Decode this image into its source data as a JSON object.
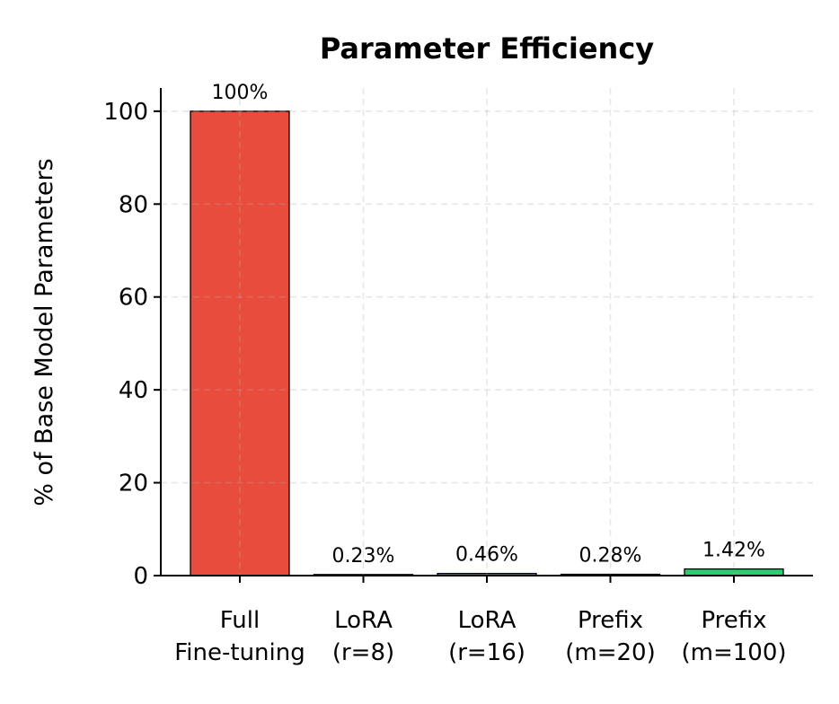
{
  "chart_data": {
    "type": "bar",
    "title": "Parameter Efficiency",
    "xlabel": "",
    "ylabel": "% of Base Model Parameters",
    "categories": [
      [
        "Full",
        "Fine-tuning"
      ],
      [
        "LoRA",
        "(r=8)"
      ],
      [
        "LoRA",
        "(r=16)"
      ],
      [
        "Prefix",
        "(m=20)"
      ],
      [
        "Prefix",
        "(m=100)"
      ]
    ],
    "values": [
      100,
      0.23,
      0.46,
      0.28,
      1.42
    ],
    "data_labels": [
      "100%",
      "0.23%",
      "0.46%",
      "0.28%",
      "1.42%"
    ],
    "colors": [
      "#e74c3c",
      "#3498db",
      "#3498db",
      "#2ecc71",
      "#2ecc71"
    ],
    "ylim": [
      0,
      105
    ],
    "yticks": [
      0,
      20,
      40,
      60,
      80,
      100
    ],
    "grid": true
  }
}
